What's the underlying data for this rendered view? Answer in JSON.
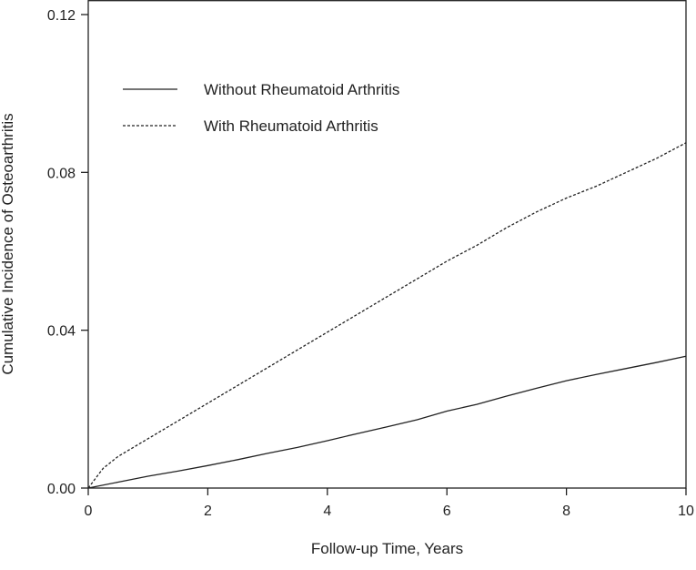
{
  "chart_data": {
    "type": "line",
    "title": "",
    "xlabel": "Follow-up Time, Years",
    "ylabel": "Cumulative Incidence of Osteoarthritis",
    "xlim": [
      0,
      10
    ],
    "ylim": [
      0,
      0.12
    ],
    "x_ticks": [
      "0",
      "2",
      "4",
      "6",
      "8",
      "10"
    ],
    "y_ticks": [
      "0.00",
      "0.04",
      "0.08",
      "0.12"
    ],
    "grid": false,
    "legend_position": "top-left",
    "series": [
      {
        "name": "Without Rheumatoid Arthritis",
        "style": "solid",
        "x": [
          0,
          0.5,
          1,
          1.5,
          2,
          2.5,
          3,
          3.5,
          4,
          4.5,
          5,
          5.5,
          6,
          6.5,
          7,
          7.5,
          8,
          8.5,
          9,
          9.5,
          10
        ],
        "y": [
          0.0,
          0.0015,
          0.003,
          0.0043,
          0.0057,
          0.0072,
          0.0088,
          0.0103,
          0.012,
          0.0138,
          0.0155,
          0.0173,
          0.0195,
          0.0212,
          0.0233,
          0.0253,
          0.0272,
          0.0288,
          0.0303,
          0.0318,
          0.0334
        ]
      },
      {
        "name": "With Rheumatoid Arthritis",
        "style": "dashed",
        "x": [
          0,
          0.25,
          0.5,
          1,
          1.5,
          2,
          2.5,
          3,
          3.5,
          4,
          4.5,
          5,
          5.5,
          6,
          6.5,
          7,
          7.5,
          8,
          8.5,
          9,
          9.5,
          10
        ],
        "y": [
          0.0,
          0.005,
          0.008,
          0.0125,
          0.017,
          0.0215,
          0.026,
          0.0305,
          0.035,
          0.0395,
          0.044,
          0.0485,
          0.053,
          0.0575,
          0.0615,
          0.066,
          0.07,
          0.0735,
          0.0765,
          0.08,
          0.0835,
          0.0875
        ]
      }
    ]
  }
}
